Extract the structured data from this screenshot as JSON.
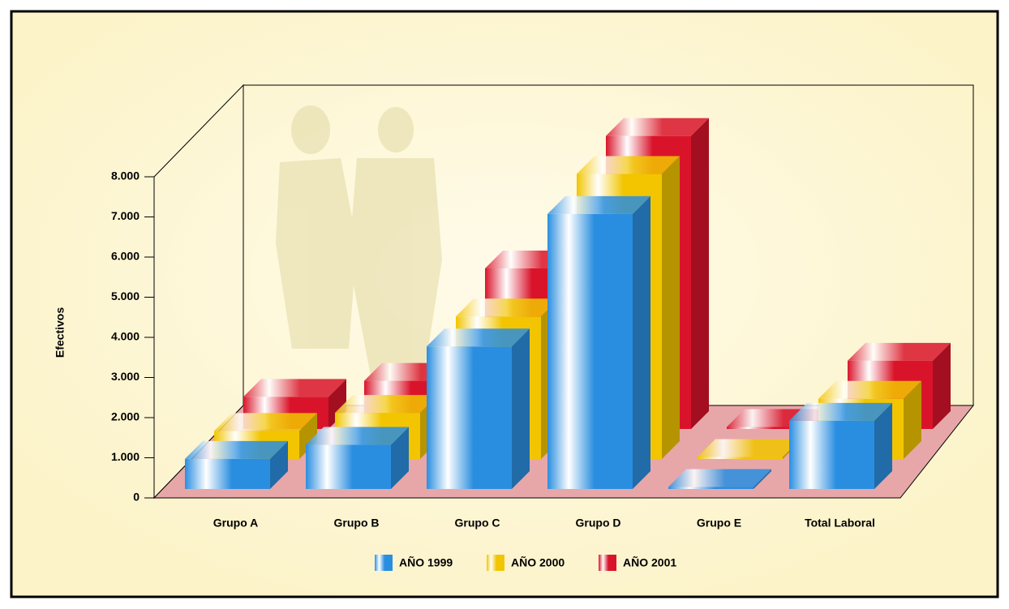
{
  "chart_data": {
    "type": "bar3d",
    "y_label": "Efectivos",
    "categories": [
      "Grupo A",
      "Grupo B",
      "Grupo C",
      "Grupo D",
      "Grupo E",
      "Total Laboral"
    ],
    "series": [
      {
        "name": "AÑO 1999",
        "color": "#2a8ee0",
        "values": [
          750,
          1100,
          3550,
          6850,
          50,
          1700
        ]
      },
      {
        "name": "AÑO 2000",
        "color": "#f2c500",
        "values": [
          700,
          1150,
          3550,
          7100,
          50,
          1500
        ]
      },
      {
        "name": "AÑO 2001",
        "color": "#d9142a",
        "values": [
          800,
          1200,
          4000,
          7300,
          50,
          1700
        ]
      }
    ],
    "ylim": [
      0,
      8000
    ],
    "yticks": [
      0,
      {
        "value": 1000,
        "label": "1.000"
      },
      {
        "value": 2000,
        "label": "2.000"
      },
      {
        "value": 3000,
        "label": "3.000"
      },
      {
        "value": 4000,
        "label": "4.000"
      },
      {
        "value": 5000,
        "label": "5.000"
      },
      {
        "value": 6000,
        "label": "6.000"
      },
      {
        "value": 7000,
        "label": "7.000"
      },
      {
        "value": 8000,
        "label": "8.000"
      }
    ]
  }
}
